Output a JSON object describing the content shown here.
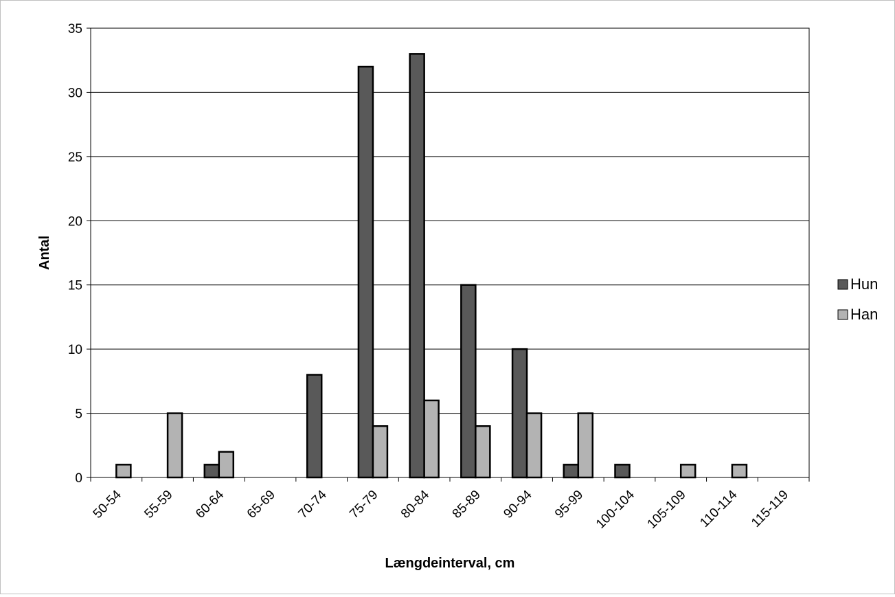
{
  "chart_data": {
    "type": "bar",
    "title": "",
    "xlabel": "Længdeinterval, cm",
    "ylabel": "Antal",
    "categories": [
      "50-54",
      "55-59",
      "60-64",
      "65-69",
      "70-74",
      "75-79",
      "80-84",
      "85-89",
      "90-94",
      "95-99",
      "100-104",
      "105-109",
      "110-114",
      "115-119"
    ],
    "ylim": [
      0,
      35
    ],
    "yticks": [
      0,
      5,
      10,
      15,
      20,
      25,
      30,
      35
    ],
    "grid": true,
    "legend_position": "right",
    "series": [
      {
        "name": "Hun",
        "color": "#595959",
        "values": [
          0,
          0,
          1,
          0,
          8,
          32,
          33,
          15,
          10,
          1,
          1,
          0,
          0,
          0
        ]
      },
      {
        "name": "Han",
        "color": "#b3b3b3",
        "values": [
          1,
          5,
          2,
          0,
          0,
          4,
          6,
          4,
          5,
          5,
          0,
          1,
          1,
          0
        ]
      }
    ]
  }
}
